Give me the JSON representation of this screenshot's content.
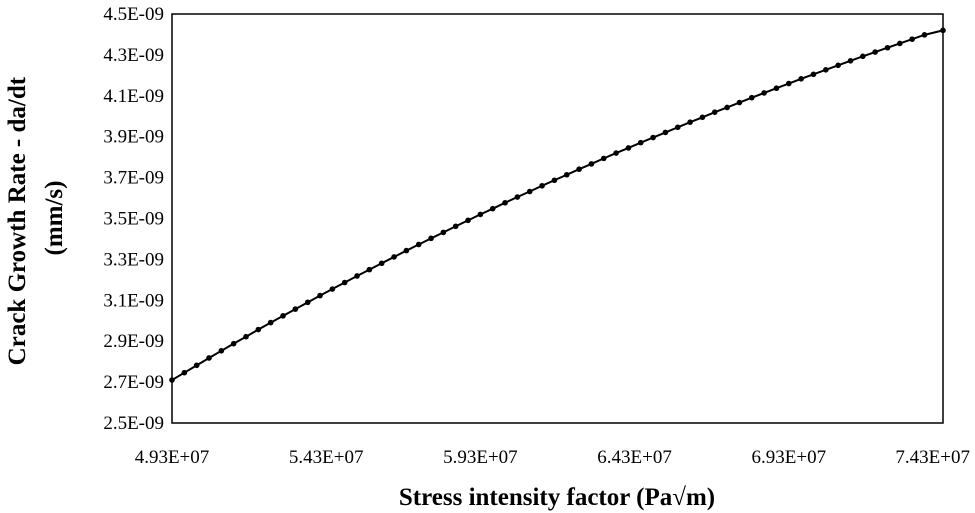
{
  "chart_data": {
    "type": "line",
    "title": "",
    "xlabel": "Stress intensity factor (Pa√m)",
    "ylabel_lines": [
      "Crack Growth Rate - da/dt",
      "(mm/s)"
    ],
    "xlim": [
      49300000.0,
      74300000.0
    ],
    "ylim": [
      2.5e-09,
      4.5e-09
    ],
    "x_ticks": [
      49300000.0,
      54300000.0,
      59300000.0,
      64300000.0,
      69300000.0,
      74300000.0
    ],
    "x_tick_labels": [
      "4.93E+07",
      "5.43E+07",
      "5.93E+07",
      "6.43E+07",
      "6.93E+07",
      "7.43E+07"
    ],
    "y_ticks": [
      2.5e-09,
      2.7e-09,
      2.9e-09,
      3.1e-09,
      3.3e-09,
      3.5e-09,
      3.7e-09,
      3.9e-09,
      4.1e-09,
      4.3e-09,
      4.5e-09
    ],
    "y_tick_labels": [
      "2.5E-09",
      "2.7E-09",
      "2.9E-09",
      "3.1E-09",
      "3.3E-09",
      "3.5E-09",
      "3.7E-09",
      "3.9E-09",
      "4.1E-09",
      "4.3E-09",
      "4.5E-09"
    ],
    "grid": false,
    "legend": "none",
    "series": [
      {
        "color": "#000000",
        "marker": "circle",
        "x": [
          49300000.0,
          49700000.0,
          50100000.0,
          50500000.0,
          50900000.0,
          51300000.0,
          51700000.0,
          52100000.0,
          52500000.0,
          52900000.0,
          53300000.0,
          53700000.0,
          54100000.0,
          54500000.0,
          54900000.0,
          55300000.0,
          55700000.0,
          56100000.0,
          56500000.0,
          56900000.0,
          57300000.0,
          57700000.0,
          58100000.0,
          58500000.0,
          58900000.0,
          59300000.0,
          59700000.0,
          60100000.0,
          60500000.0,
          60900000.0,
          61300000.0,
          61700000.0,
          62100000.0,
          62500000.0,
          62900000.0,
          63300000.0,
          63700000.0,
          64100000.0,
          64500000.0,
          64900000.0,
          65300000.0,
          65700000.0,
          66100000.0,
          66500000.0,
          66900000.0,
          67300000.0,
          67700000.0,
          68100000.0,
          68500000.0,
          68900000.0,
          69300000.0,
          69700000.0,
          70100000.0,
          70500000.0,
          70900000.0,
          71300000.0,
          71700000.0,
          72100000.0,
          72500000.0,
          72900000.0,
          73300000.0,
          73700000.0,
          74300000.0
        ],
        "y": [
          2.71e-09,
          2.746e-09,
          2.782e-09,
          2.818e-09,
          2.853e-09,
          2.888e-09,
          2.922e-09,
          2.957e-09,
          2.991e-09,
          3.024e-09,
          3.057e-09,
          3.09e-09,
          3.123e-09,
          3.155e-09,
          3.187e-09,
          3.219e-09,
          3.25e-09,
          3.281e-09,
          3.312e-09,
          3.343e-09,
          3.373e-09,
          3.403e-09,
          3.432e-09,
          3.462e-09,
          3.491e-09,
          3.52e-09,
          3.548e-09,
          3.577e-09,
          3.605e-09,
          3.632e-09,
          3.66e-09,
          3.687e-09,
          3.714e-09,
          3.741e-09,
          3.767e-09,
          3.794e-09,
          3.82e-09,
          3.845e-09,
          3.871e-09,
          3.896e-09,
          3.921e-09,
          3.946e-09,
          3.971e-09,
          3.995e-09,
          4.02e-09,
          4.043e-09,
          4.067e-09,
          4.091e-09,
          4.114e-09,
          4.137e-09,
          4.16e-09,
          4.183e-09,
          4.205e-09,
          4.227e-09,
          4.249e-09,
          4.271e-09,
          4.293e-09,
          4.314e-09,
          4.335e-09,
          4.356e-09,
          4.377e-09,
          4.398e-09,
          4.42e-09
        ]
      }
    ]
  }
}
